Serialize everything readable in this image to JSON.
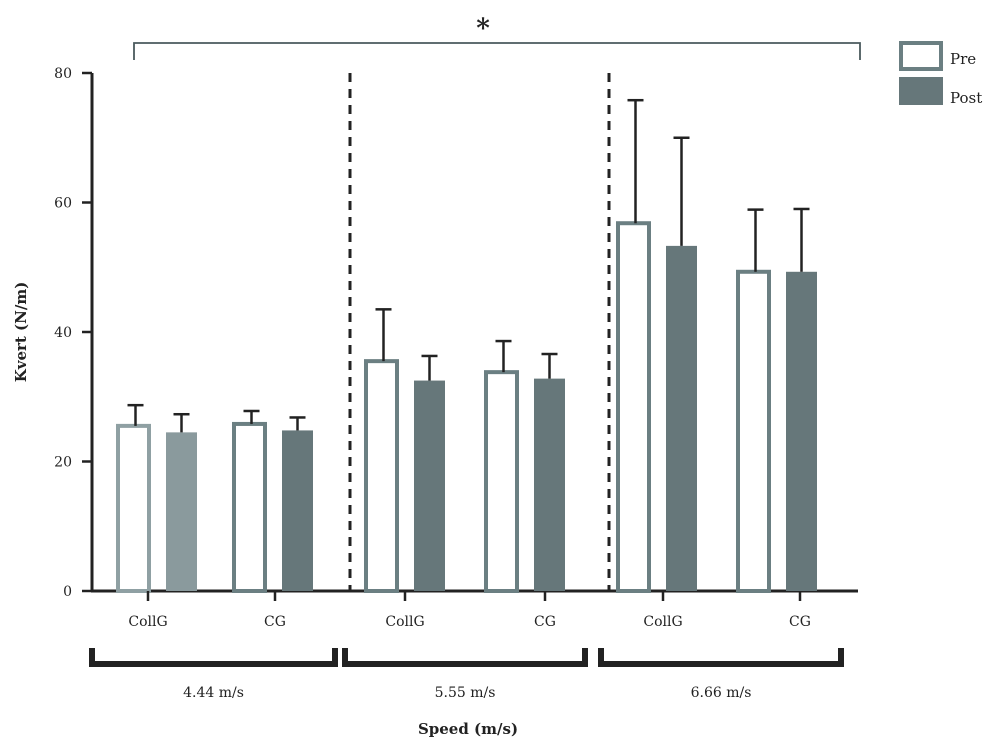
{
  "chart_data": {
    "type": "bar",
    "ylabel": "Kvert (N/m)",
    "xlabel": "Speed (m/s)",
    "ylim": [
      0,
      80
    ],
    "yticks": [
      0,
      20,
      40,
      60,
      80
    ],
    "significance": "*",
    "legend": {
      "placement": "top-right",
      "entries": [
        "Pre",
        "Post"
      ]
    },
    "groups": [
      {
        "speed": "4.44 m/s",
        "categories": [
          {
            "name": "CollG",
            "pre": 25.5,
            "pre_err": 3.2,
            "post": 24.5,
            "post_err": 2.8
          },
          {
            "name": "CG",
            "pre": 25.8,
            "pre_err": 2.0,
            "post": 24.8,
            "post_err": 2.0
          }
        ]
      },
      {
        "speed": "5.55 m/s",
        "categories": [
          {
            "name": "CollG",
            "pre": 35.5,
            "pre_err": 8.0,
            "post": 32.5,
            "post_err": 3.8
          },
          {
            "name": "CG",
            "pre": 33.8,
            "pre_err": 4.8,
            "post": 32.8,
            "post_err": 3.8
          }
        ]
      },
      {
        "speed": "6.66 m/s",
        "categories": [
          {
            "name": "CollG",
            "pre": 56.8,
            "pre_err": 19.0,
            "post": 53.3,
            "post_err": 16.7
          },
          {
            "name": "CG",
            "pre": 49.3,
            "pre_err": 9.6,
            "post": 49.3,
            "post_err": 9.7
          }
        ]
      }
    ],
    "colors": {
      "pre_fill": "#ffffff",
      "pre_stroke": "#6b7f82",
      "pre_stroke_light": "#8fa0a3",
      "post_fill": "#66777a",
      "post_fill_light": "#8a9a9d",
      "axis": "#222222"
    }
  }
}
